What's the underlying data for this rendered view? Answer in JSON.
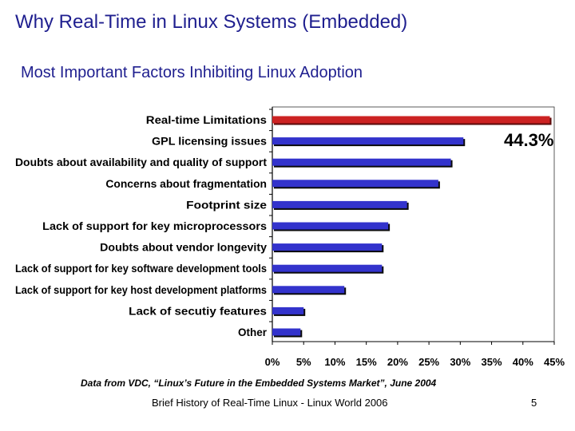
{
  "slide": {
    "title": "Why Real-Time in Linux Systems (Embedded)",
    "subtitle": "Most Important Factors Inhibiting Linux Adoption",
    "caption": "Data from VDC, “Linux’s Future in the Embedded Systems Market”, June 2004",
    "footer": "Brief History of Real-Time Linux - Linux World 2006",
    "page_number": "5"
  },
  "chart_data": {
    "type": "bar",
    "orientation": "horizontal",
    "categories": [
      "Real-time Limitations",
      "GPL licensing issues",
      "Doubts about availability and quality of support",
      "Concerns about fragmentation",
      "Footprint size",
      "Lack of support for key microprocessors",
      "Doubts about vendor longevity",
      "Lack of support for key software development tools",
      "Lack of support for key host development platforms",
      "Lack of secutiy features",
      "Other"
    ],
    "values": [
      44.3,
      30.5,
      28.5,
      26.5,
      21.5,
      18.5,
      17.5,
      17.5,
      11.5,
      5.0,
      4.5
    ],
    "highlight_index": 0,
    "annotation": "44.3%",
    "xlim": [
      0,
      45
    ],
    "ticks": [
      "0%",
      "5%",
      "10%",
      "15%",
      "20%",
      "25%",
      "30%",
      "35%",
      "40%",
      "45%"
    ],
    "tick_values": [
      0,
      5,
      10,
      15,
      20,
      25,
      30,
      35,
      40,
      45
    ],
    "grid": false,
    "colors": {
      "bar": "#3333cc",
      "highlight": "#cc2222",
      "shadow": "#0a0a0a",
      "highlight_shadow": "#5a0a0a"
    }
  }
}
